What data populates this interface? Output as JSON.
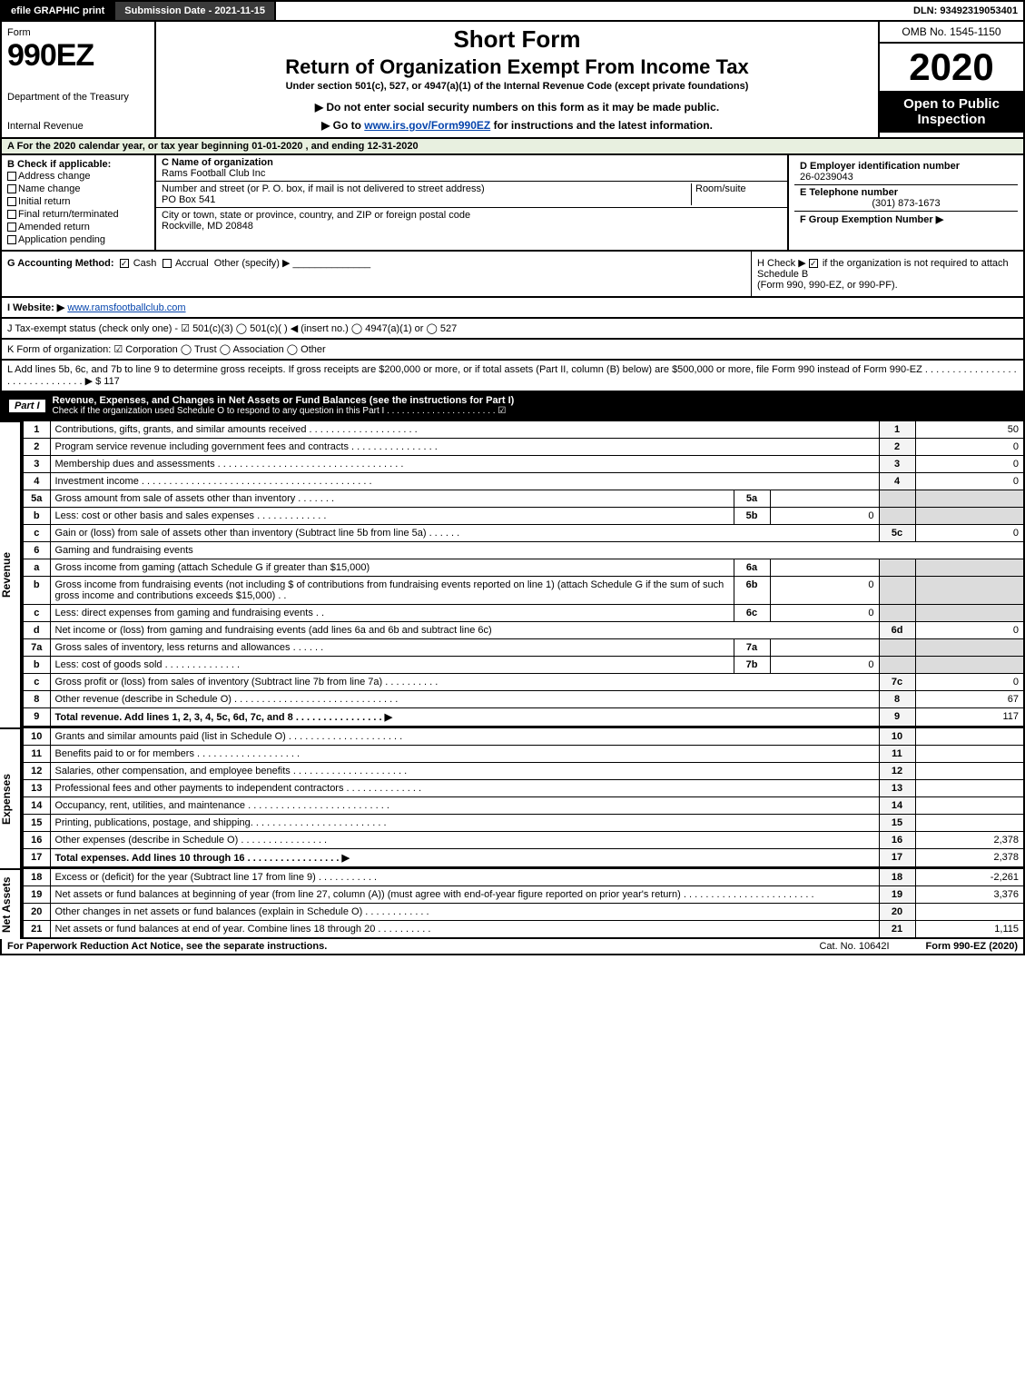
{
  "topbar": {
    "efile": "efile GRAPHIC print",
    "submission": "Submission Date - 2021-11-15",
    "dln": "DLN: 93492319053401"
  },
  "header": {
    "form_word": "Form",
    "form_num": "990EZ",
    "dept1": "Department of the Treasury",
    "dept2": "Internal Revenue",
    "short": "Short Form",
    "title": "Return of Organization Exempt From Income Tax",
    "sub": "Under section 501(c), 527, or 4947(a)(1) of the Internal Revenue Code (except private foundations)",
    "warn": "▶ Do not enter social security numbers on this form as it may be made public.",
    "goto_pre": "▶ Go to ",
    "goto_link": "www.irs.gov/Form990EZ",
    "goto_post": " for instructions and the latest information.",
    "omb": "OMB No. 1545-1150",
    "year": "2020",
    "open": "Open to Public Inspection"
  },
  "lineA": "A For the 2020 calendar year, or tax year beginning 01-01-2020 , and ending 12-31-2020",
  "B": {
    "hdr": "B  Check if applicable:",
    "opts": [
      "Address change",
      "Name change",
      "Initial return",
      "Final return/terminated",
      "Amended return",
      "Application pending"
    ]
  },
  "C": {
    "name_lbl": "C Name of organization",
    "name": "Rams Football Club Inc",
    "addr_lbl": "Number and street (or P. O. box, if mail is not delivered to street address)",
    "addr": "PO Box 541",
    "room_lbl": "Room/suite",
    "city_lbl": "City or town, state or province, country, and ZIP or foreign postal code",
    "city": "Rockville, MD  20848"
  },
  "D": {
    "lbl": "D Employer identification number",
    "val": "26-0239043"
  },
  "E": {
    "lbl": "E Telephone number",
    "val": "(301) 873-1673"
  },
  "F": {
    "lbl": "F Group Exemption Number   ▶"
  },
  "G": {
    "lbl": "G Accounting Method:",
    "cash": "Cash",
    "accrual": "Accrual",
    "other": "Other (specify) ▶"
  },
  "H": {
    "pre": "H  Check ▶ ",
    "post": " if the organization is not required to attach Schedule B",
    "sub": "(Form 990, 990-EZ, or 990-PF)."
  },
  "I": {
    "lbl": "I Website: ▶",
    "val": "www.ramsfootballclub.com"
  },
  "J": "J Tax-exempt status (check only one) - ☑ 501(c)(3)  ◯ 501(c)(  ) ◀ (insert no.)  ◯ 4947(a)(1) or  ◯ 527",
  "K": "K Form of organization:  ☑ Corporation  ◯ Trust  ◯ Association  ◯ Other",
  "L": {
    "text": "L Add lines 5b, 6c, and 7b to line 9 to determine gross receipts. If gross receipts are $200,000 or more, or if total assets (Part II, column (B) below) are $500,000 or more, file Form 990 instead of Form 990-EZ . . . . . . . . . . . . . . . . . . . . . . . . . . . . . . . ▶ $ 117"
  },
  "part1": {
    "label": "Part I",
    "title": "Revenue, Expenses, and Changes in Net Assets or Fund Balances (see the instructions for Part I)",
    "sub": "Check if the organization used Schedule O to respond to any question in this Part I . . . . . . . . . . . . . . . . . . . . . . ☑"
  },
  "sections": {
    "revenue": "Revenue",
    "expenses": "Expenses",
    "netassets": "Net Assets"
  },
  "rows": [
    {
      "n": "1",
      "t": "Contributions, gifts, grants, and similar amounts received . . . . . . . . . . . . . . . . . . . .",
      "r": "1",
      "v": "50"
    },
    {
      "n": "2",
      "t": "Program service revenue including government fees and contracts . . . . . . . . . . . . . . . .",
      "r": "2",
      "v": "0"
    },
    {
      "n": "3",
      "t": "Membership dues and assessments . . . . . . . . . . . . . . . . . . . . . . . . . . . . . . . . . .",
      "r": "3",
      "v": "0"
    },
    {
      "n": "4",
      "t": "Investment income . . . . . . . . . . . . . . . . . . . . . . . . . . . . . . . . . . . . . . . . . .",
      "r": "4",
      "v": "0"
    },
    {
      "n": "5a",
      "t": "Gross amount from sale of assets other than inventory . . . . . . .",
      "sub": "5a",
      "sv": ""
    },
    {
      "n": "b",
      "t": "Less: cost or other basis and sales expenses . . . . . . . . . . . . .",
      "sub": "5b",
      "sv": "0"
    },
    {
      "n": "c",
      "t": "Gain or (loss) from sale of assets other than inventory (Subtract line 5b from line 5a) . . . . . .",
      "r": "5c",
      "v": "0"
    },
    {
      "n": "6",
      "t": "Gaming and fundraising events"
    },
    {
      "n": "a",
      "t": "Gross income from gaming (attach Schedule G if greater than $15,000)",
      "sub": "6a",
      "sv": ""
    },
    {
      "n": "b",
      "t": "Gross income from fundraising events (not including $               of contributions from fundraising events reported on line 1) (attach Schedule G if the sum of such gross income and contributions exceeds $15,000)   .  .",
      "sub": "6b",
      "sv": "0"
    },
    {
      "n": "c",
      "t": "Less: direct expenses from gaming and fundraising events    .  .",
      "sub": "6c",
      "sv": "0"
    },
    {
      "n": "d",
      "t": "Net income or (loss) from gaming and fundraising events (add lines 6a and 6b and subtract line 6c)",
      "r": "6d",
      "v": "0"
    },
    {
      "n": "7a",
      "t": "Gross sales of inventory, less returns and allowances . . . . . .",
      "sub": "7a",
      "sv": ""
    },
    {
      "n": "b",
      "t": "Less: cost of goods sold      .   .   .   .   .   .   .   .   .   .   .   .   .   .",
      "sub": "7b",
      "sv": "0"
    },
    {
      "n": "c",
      "t": "Gross profit or (loss) from sales of inventory (Subtract line 7b from line 7a) . . . . . . . . . .",
      "r": "7c",
      "v": "0"
    },
    {
      "n": "8",
      "t": "Other revenue (describe in Schedule O) . . . . . . . . . . . . . . . . . . . . . . . . . . . . . .",
      "r": "8",
      "v": "67"
    },
    {
      "n": "9",
      "t": "Total revenue. Add lines 1, 2, 3, 4, 5c, 6d, 7c, and 8  .  .  .  .  .  .  .  .  .  .  .  .  .  .  .  .   ▶",
      "r": "9",
      "v": "117",
      "bold": true
    }
  ],
  "exp": [
    {
      "n": "10",
      "t": "Grants and similar amounts paid (list in Schedule O) . . . . . . . . . . . . . . . . . . . . .",
      "r": "10",
      "v": ""
    },
    {
      "n": "11",
      "t": "Benefits paid to or for members     .   .   .   .   .   .   .   .   .   .   .   .   .   .   .   .   .   .   .",
      "r": "11",
      "v": ""
    },
    {
      "n": "12",
      "t": "Salaries, other compensation, and employee benefits . . . . . . . . . . . . . . . . . . . . .",
      "r": "12",
      "v": ""
    },
    {
      "n": "13",
      "t": "Professional fees and other payments to independent contractors . . . . . . . . . . . . . .",
      "r": "13",
      "v": ""
    },
    {
      "n": "14",
      "t": "Occupancy, rent, utilities, and maintenance . . . . . . . . . . . . . . . . . . . . . . . . . .",
      "r": "14",
      "v": ""
    },
    {
      "n": "15",
      "t": "Printing, publications, postage, and shipping. . . . . . . . . . . . . . . . . . . . . . . . .",
      "r": "15",
      "v": ""
    },
    {
      "n": "16",
      "t": "Other expenses (describe in Schedule O)    .   .   .   .   .   .   .   .   .   .   .   .   .   .   .   .",
      "r": "16",
      "v": "2,378"
    },
    {
      "n": "17",
      "t": "Total expenses. Add lines 10 through 16   .   .   .   .   .   .   .   .   .   .   .   .   .   .   .   .   .   ▶",
      "r": "17",
      "v": "2,378",
      "bold": true
    }
  ],
  "net": [
    {
      "n": "18",
      "t": "Excess or (deficit) for the year (Subtract line 17 from line 9)     .   .   .   .   .   .   .   .   .   .   .",
      "r": "18",
      "v": "-2,261"
    },
    {
      "n": "19",
      "t": "Net assets or fund balances at beginning of year (from line 27, column (A)) (must agree with end-of-year figure reported on prior year's return) . . . . . . . . . . . . . . . . . . . . . . . .",
      "r": "19",
      "v": "3,376"
    },
    {
      "n": "20",
      "t": "Other changes in net assets or fund balances (explain in Schedule O) . . . . . . . . . . . .",
      "r": "20",
      "v": ""
    },
    {
      "n": "21",
      "t": "Net assets or fund balances at end of year. Combine lines 18 through 20 .  .  .  .  .  .  .  .  .  .",
      "r": "21",
      "v": "1,115"
    }
  ],
  "footer": {
    "left": "For Paperwork Reduction Act Notice, see the separate instructions.",
    "mid": "Cat. No. 10642I",
    "right": "Form 990-EZ (2020)"
  }
}
